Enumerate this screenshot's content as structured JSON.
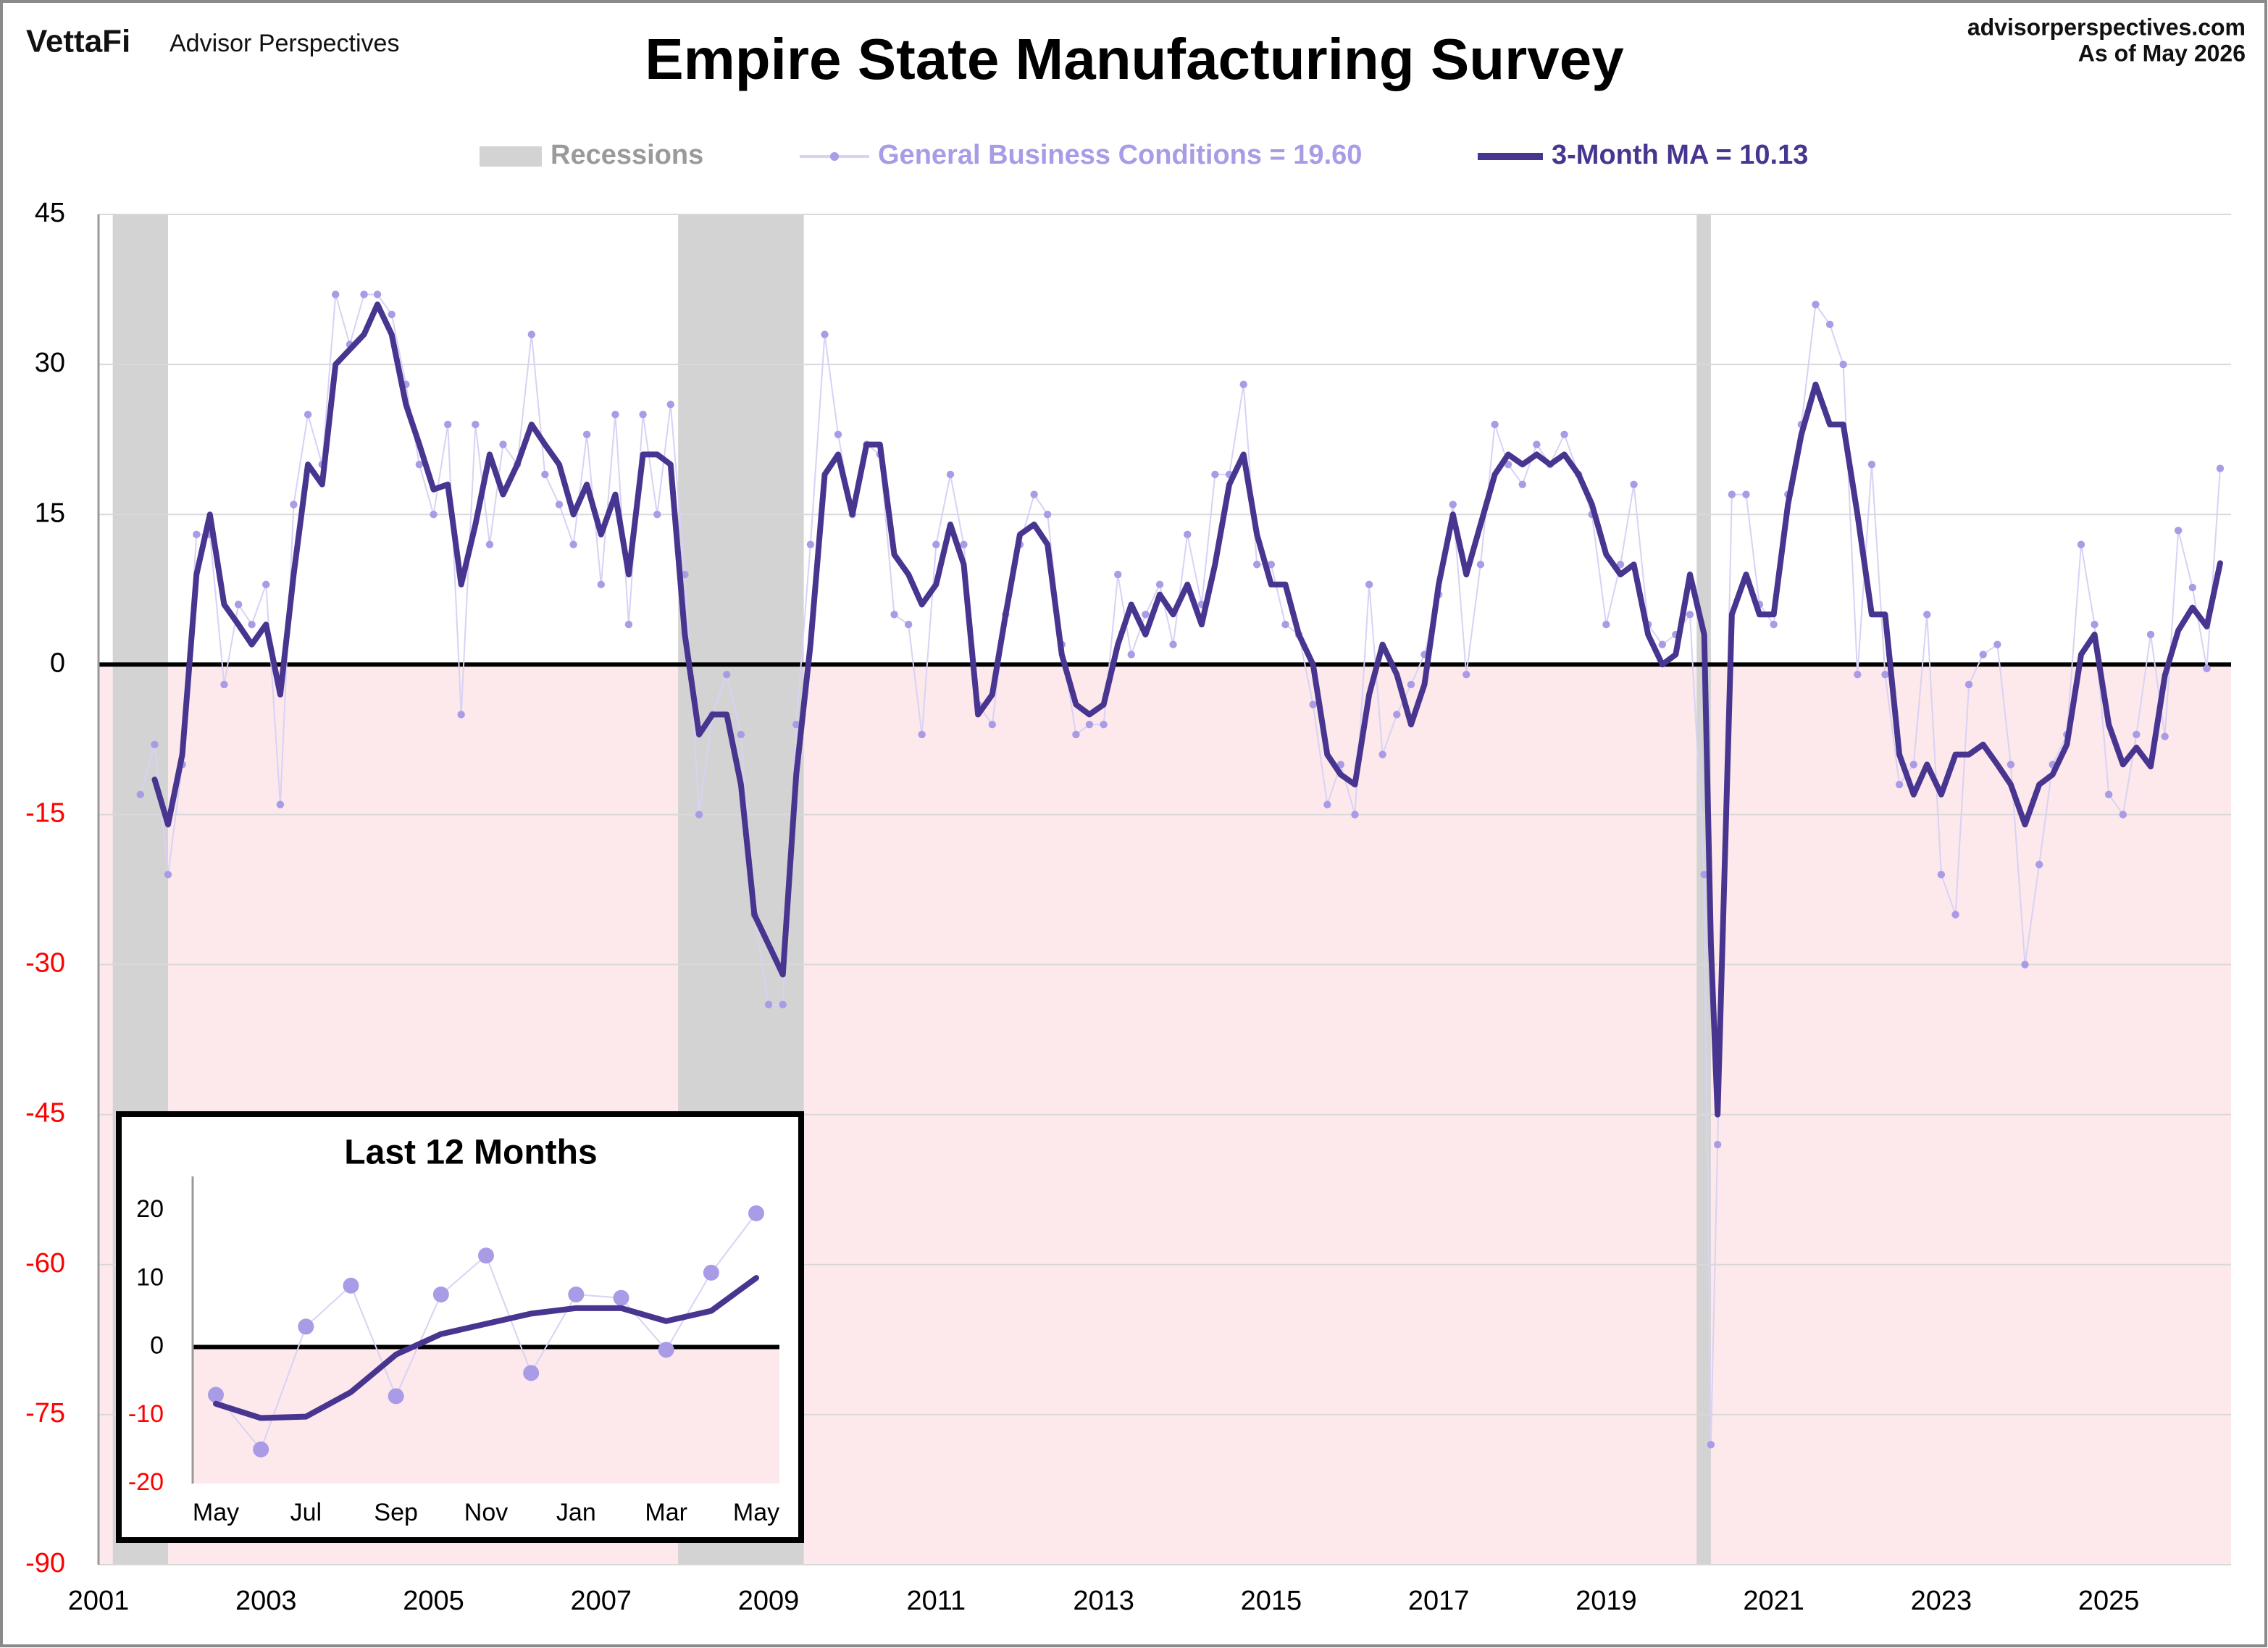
{
  "header": {
    "logo": "VettaFi",
    "brand": "Advisor Perspectives",
    "site": "advisorperspectives.com",
    "asof": "As of May 2026"
  },
  "chart_data": [
    {
      "type": "line",
      "title": "Empire State Manufacturing Survey",
      "x": [
        2001.5,
        2001.67,
        2001.83,
        2002,
        2002.17,
        2002.33,
        2002.5,
        2002.67,
        2002.83,
        2003,
        2003.17,
        2003.33,
        2003.5,
        2003.67,
        2003.83,
        2004,
        2004.17,
        2004.33,
        2004.5,
        2004.67,
        2004.83,
        2005,
        2005.17,
        2005.33,
        2005.5,
        2005.67,
        2005.83,
        2006,
        2006.17,
        2006.33,
        2006.5,
        2006.67,
        2006.83,
        2007,
        2007.17,
        2007.33,
        2007.5,
        2007.67,
        2007.83,
        2008,
        2008.17,
        2008.33,
        2008.5,
        2008.67,
        2008.83,
        2009,
        2009.17,
        2009.33,
        2009.5,
        2009.67,
        2009.83,
        2010,
        2010.17,
        2010.33,
        2010.5,
        2010.67,
        2010.83,
        2011,
        2011.17,
        2011.33,
        2011.5,
        2011.67,
        2011.83,
        2012,
        2012.17,
        2012.33,
        2012.5,
        2012.67,
        2012.83,
        2013,
        2013.17,
        2013.33,
        2013.5,
        2013.67,
        2013.83,
        2014,
        2014.17,
        2014.33,
        2014.5,
        2014.67,
        2014.83,
        2015,
        2015.17,
        2015.33,
        2015.5,
        2015.67,
        2015.83,
        2016,
        2016.17,
        2016.33,
        2016.5,
        2016.67,
        2016.83,
        2017,
        2017.17,
        2017.33,
        2017.5,
        2017.67,
        2017.83,
        2018,
        2018.17,
        2018.33,
        2018.5,
        2018.67,
        2018.83,
        2019,
        2019.17,
        2019.33,
        2019.5,
        2019.67,
        2019.83,
        2020,
        2020.17,
        2020.25,
        2020.33,
        2020.5,
        2020.67,
        2020.83,
        2021,
        2021.17,
        2021.33,
        2021.5,
        2021.67,
        2021.83,
        2022,
        2022.17,
        2022.33,
        2022.5,
        2022.67,
        2022.83,
        2023,
        2023.17,
        2023.33,
        2023.5,
        2023.67,
        2023.83,
        2024,
        2024.17,
        2024.33,
        2024.5,
        2024.67,
        2024.83,
        2025,
        2025.17,
        2025.33,
        2025.5,
        2025.67,
        2025.83,
        2026,
        2026.17,
        2026.33
      ],
      "xlim": [
        2001,
        2026.46
      ],
      "xticks": [
        2001,
        2003,
        2005,
        2007,
        2009,
        2011,
        2013,
        2015,
        2017,
        2019,
        2021,
        2023,
        2025
      ],
      "ylim": [
        -90,
        45
      ],
      "yticks": [
        45,
        30,
        15,
        0,
        -15,
        -30,
        -45,
        -60,
        -75,
        -90
      ],
      "grid": true,
      "zero_line": true,
      "negative_fill": "#fde9eb",
      "negative_tick_color": "#ff0000",
      "legend": "top",
      "recessions": {
        "name": "Recessions",
        "color": "#d3d3d3",
        "ranges": [
          [
            2001.17,
            2001.83
          ],
          [
            2007.92,
            2009.42
          ],
          [
            2020.08,
            2020.25
          ]
        ]
      },
      "series": [
        {
          "name": "General Business Conditions = 19.60",
          "color": "#a99be6",
          "line_color": "#d8d2f4",
          "line_width": 1,
          "markers": true,
          "values": [
            -13,
            -8,
            -21,
            -10,
            13,
            13,
            -2,
            6,
            4,
            8,
            -14,
            16,
            25,
            20,
            37,
            32,
            37,
            37,
            35,
            28,
            20,
            15,
            24,
            -5,
            24,
            12,
            22,
            20,
            33,
            19,
            16,
            12,
            23,
            8,
            25,
            4,
            25,
            15,
            26,
            9,
            -15,
            -5,
            -1,
            -7,
            -25,
            -34,
            -34,
            -6,
            12,
            33,
            23,
            15,
            22,
            21,
            5,
            4,
            -7,
            12,
            19,
            12,
            -4,
            -6,
            5,
            12,
            17,
            15,
            2,
            -7,
            -6,
            -6,
            9,
            1,
            5,
            8,
            2,
            13,
            6,
            19,
            19,
            28,
            10,
            10,
            4,
            3,
            -4,
            -14,
            -10,
            -15,
            8,
            -9,
            -5,
            -2,
            1,
            7,
            16,
            -1,
            10,
            24,
            20,
            18,
            22,
            20,
            23,
            19,
            15,
            4,
            10,
            18,
            4,
            2,
            3,
            5,
            -21,
            -78,
            -48,
            17,
            17,
            6,
            4,
            17,
            24,
            36,
            34,
            30,
            -1,
            20,
            -1,
            -12,
            -10,
            5,
            -21,
            -25,
            -2,
            1,
            2,
            -10,
            -30,
            -20,
            -10,
            -7,
            12,
            4,
            -13,
            -15,
            -7,
            3,
            -7.2,
            13.4,
            7.7,
            -0.4,
            19.6
          ]
        },
        {
          "name": "3-Month MA = 10.13",
          "color": "#483590",
          "line_width": 4,
          "values": [
            null,
            -11.5,
            -16,
            -9,
            9,
            15,
            6,
            4,
            2,
            4,
            -3,
            9,
            20,
            18,
            30,
            31.5,
            33,
            36,
            33,
            26,
            22,
            17.5,
            18,
            8,
            14,
            21,
            17,
            20,
            24,
            22,
            20,
            15,
            18,
            13,
            17,
            9,
            21,
            21,
            20,
            3,
            -7,
            -5,
            -5,
            -12,
            -25,
            -28,
            -31,
            -11,
            2,
            19,
            21,
            15,
            22,
            22,
            11,
            9,
            6,
            8,
            14,
            10,
            -5,
            -3,
            5,
            13,
            14,
            12,
            1,
            -4,
            -5,
            -4,
            2,
            6,
            3,
            7,
            5,
            8,
            4,
            10,
            18,
            21,
            13,
            8,
            8,
            3,
            0,
            -9,
            -11,
            -12,
            -3,
            2,
            -1,
            -6,
            -2,
            8,
            15,
            9,
            14,
            19,
            21,
            20,
            21,
            20,
            21,
            19,
            16,
            11,
            9,
            10,
            3,
            0,
            1,
            9,
            3,
            -28,
            -45,
            5,
            9,
            5,
            5,
            16,
            23,
            28,
            24,
            24,
            15,
            5,
            5,
            -9,
            -13,
            -10,
            -13,
            -9,
            -9,
            -8,
            -10,
            -12,
            -16,
            -12,
            -11,
            -8,
            1,
            3,
            -6,
            -10,
            -8.3,
            -10.2,
            -1.1,
            3.4,
            5.7,
            3.8,
            10.13
          ]
        }
      ]
    },
    {
      "type": "line",
      "title": "Last 12 Months",
      "categories": [
        "May",
        null,
        "Jul",
        null,
        "Sep",
        null,
        "Nov",
        null,
        "Jan",
        null,
        "Mar",
        null,
        "May"
      ],
      "ylim": [
        -20,
        25
      ],
      "yticks": [
        -20,
        -10,
        0,
        10,
        20
      ],
      "zero_line": true,
      "negative_fill": "#fde9eb",
      "negative_tick_color": "#ff0000",
      "series": [
        {
          "color": "#a99be6",
          "line_color": "#d8d2f4",
          "line_width": 1,
          "markers": true,
          "values": [
            -7,
            -15,
            3,
            9,
            -7.2,
            7.7,
            13.4,
            -3.8,
            7.7,
            7.2,
            -0.4,
            10.9,
            19.6
          ]
        },
        {
          "color": "#483590",
          "line_width": 4,
          "values": [
            -8.3,
            -10.4,
            -10.2,
            -6.6,
            -1.1,
            1.9,
            3.4,
            4.9,
            5.7,
            5.7,
            3.8,
            5.3,
            10.13
          ]
        }
      ]
    }
  ]
}
